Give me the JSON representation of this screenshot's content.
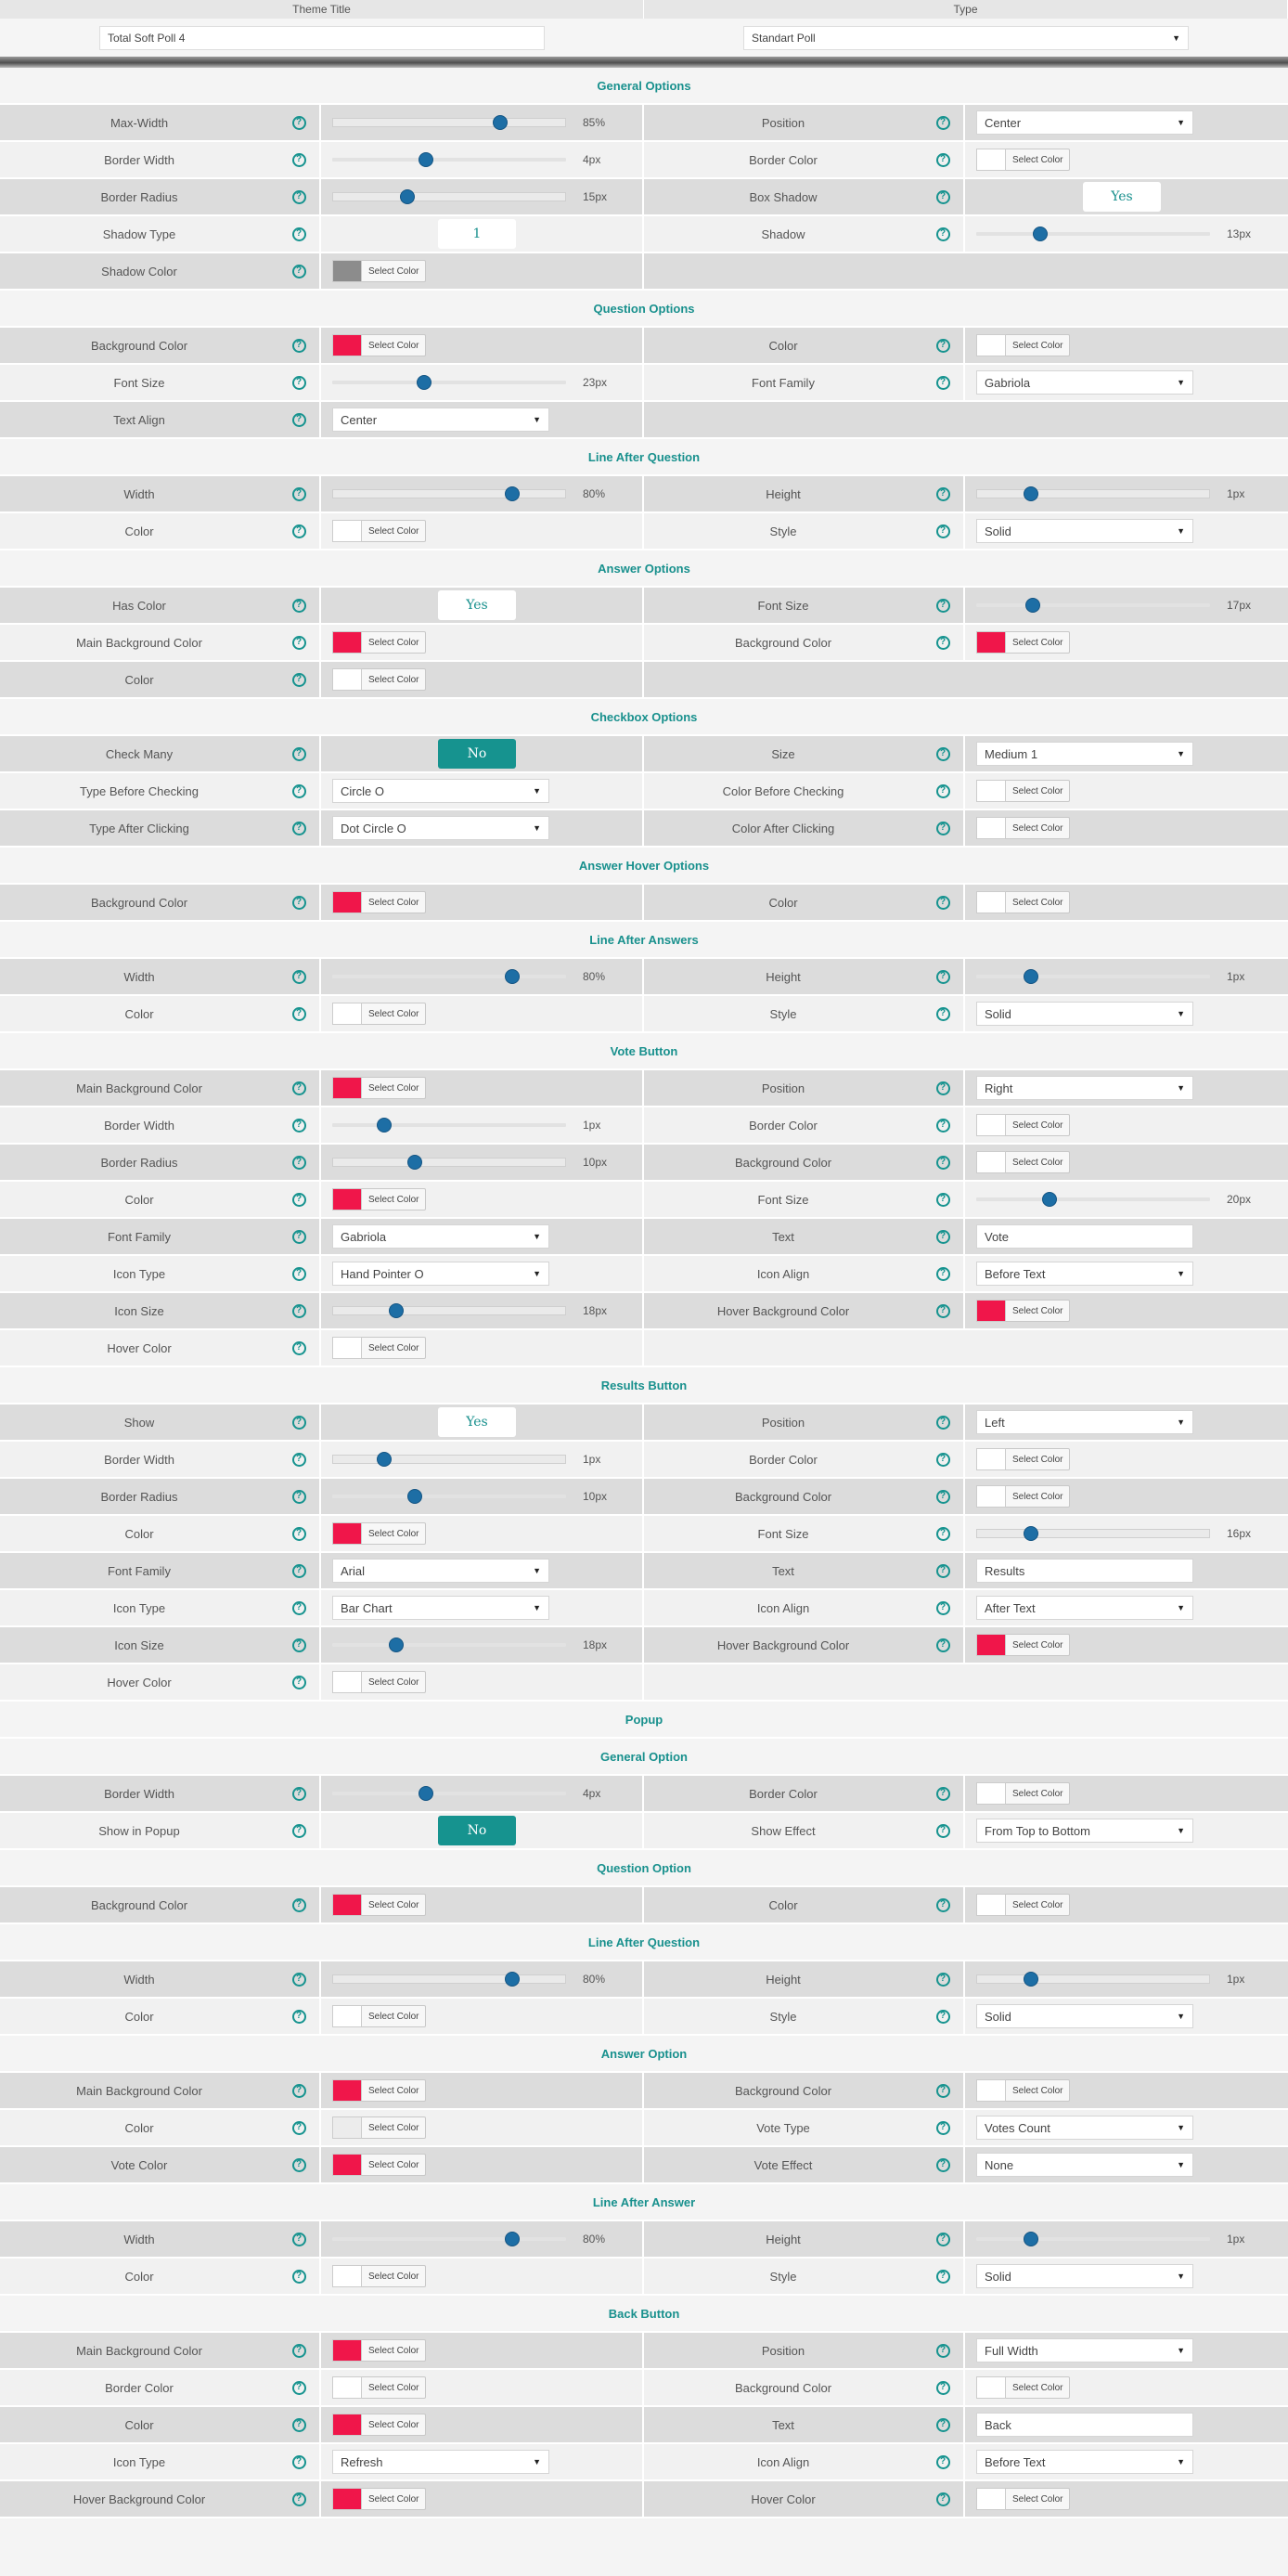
{
  "top": {
    "theme_title_label": "Theme Title",
    "type_label": "Type",
    "theme_title_value": "Total Soft Poll 4",
    "type_value": "Standart Poll"
  },
  "colors": {
    "accent": "#16938f",
    "red": "#f0164a",
    "gray": "#8c8c8c",
    "white": "#ffffff",
    "light": "#ececec"
  },
  "rows": [
    {
      "t": "sec",
      "text": "General Options"
    },
    {
      "t": "row",
      "l": {
        "label": "Max-Width",
        "ctl": {
          "k": "slider",
          "value": "85%",
          "pos": 72,
          "boxed": true
        }
      },
      "r": {
        "label": "Position",
        "ctl": {
          "k": "select",
          "value": "Center"
        }
      }
    },
    {
      "t": "row",
      "l": {
        "label": "Border Width",
        "ctl": {
          "k": "slider",
          "value": "4px",
          "pos": 40
        }
      },
      "r": {
        "label": "Border Color",
        "ctl": {
          "k": "color",
          "swatch": "white",
          "btn": "Select Color"
        }
      }
    },
    {
      "t": "row",
      "l": {
        "label": "Border Radius",
        "ctl": {
          "k": "slider",
          "value": "15px",
          "pos": 32,
          "boxed": true
        }
      },
      "r": {
        "label": "Box Shadow",
        "ctl": {
          "k": "toggle",
          "value": "Yes",
          "on": false
        }
      }
    },
    {
      "t": "row",
      "l": {
        "label": "Shadow Type",
        "ctl": {
          "k": "toggle",
          "value": "1",
          "on": false
        }
      },
      "r": {
        "label": "Shadow",
        "ctl": {
          "k": "slider",
          "value": "13px",
          "pos": 27
        }
      }
    },
    {
      "t": "row",
      "l": {
        "label": "Shadow Color",
        "ctl": {
          "k": "color",
          "swatch": "gray",
          "btn": "Select Color"
        }
      },
      "r": null
    },
    {
      "t": "sec",
      "text": "Question Options"
    },
    {
      "t": "row",
      "l": {
        "label": "Background Color",
        "ctl": {
          "k": "color",
          "swatch": "red",
          "btn": "Select Color"
        }
      },
      "r": {
        "label": "Color",
        "ctl": {
          "k": "color",
          "swatch": "white",
          "btn": "Select Color"
        }
      }
    },
    {
      "t": "row",
      "l": {
        "label": "Font Size",
        "ctl": {
          "k": "slider",
          "value": "23px",
          "pos": 39
        }
      },
      "r": {
        "label": "Font Family",
        "ctl": {
          "k": "select",
          "value": "Gabriola"
        }
      }
    },
    {
      "t": "row",
      "l": {
        "label": "Text Align",
        "ctl": {
          "k": "select",
          "value": "Center"
        }
      },
      "r": null
    },
    {
      "t": "sec",
      "text": "Line After Question"
    },
    {
      "t": "row",
      "l": {
        "label": "Width",
        "ctl": {
          "k": "slider",
          "value": "80%",
          "pos": 77,
          "boxed": true
        }
      },
      "r": {
        "label": "Height",
        "ctl": {
          "k": "slider",
          "value": "1px",
          "pos": 23,
          "boxed": true
        }
      }
    },
    {
      "t": "row",
      "l": {
        "label": "Color",
        "ctl": {
          "k": "color",
          "swatch": "white",
          "btn": "Select Color"
        }
      },
      "r": {
        "label": "Style",
        "ctl": {
          "k": "select",
          "value": "Solid"
        }
      }
    },
    {
      "t": "sec",
      "text": "Answer Options"
    },
    {
      "t": "row",
      "l": {
        "label": "Has Color",
        "ctl": {
          "k": "toggle",
          "value": "Yes",
          "on": false
        }
      },
      "r": {
        "label": "Font Size",
        "ctl": {
          "k": "slider",
          "value": "17px",
          "pos": 24
        }
      }
    },
    {
      "t": "row",
      "l": {
        "label": "Main Background Color",
        "ctl": {
          "k": "color",
          "swatch": "red",
          "btn": "Select Color"
        }
      },
      "r": {
        "label": "Background Color",
        "ctl": {
          "k": "color",
          "swatch": "red",
          "btn": "Select Color"
        }
      }
    },
    {
      "t": "row",
      "l": {
        "label": "Color",
        "ctl": {
          "k": "color",
          "swatch": "white",
          "btn": "Select Color"
        }
      },
      "r": null
    },
    {
      "t": "sec",
      "text": "Checkbox Options"
    },
    {
      "t": "row",
      "l": {
        "label": "Check Many",
        "ctl": {
          "k": "toggle",
          "value": "No",
          "on": true
        }
      },
      "r": {
        "label": "Size",
        "ctl": {
          "k": "select",
          "value": "Medium 1"
        }
      }
    },
    {
      "t": "row",
      "l": {
        "label": "Type Before Checking",
        "ctl": {
          "k": "select",
          "value": "Circle O"
        }
      },
      "r": {
        "label": "Color Before Checking",
        "ctl": {
          "k": "color",
          "swatch": "white",
          "btn": "Select Color"
        }
      }
    },
    {
      "t": "row",
      "l": {
        "label": "Type After Clicking",
        "ctl": {
          "k": "select",
          "value": "Dot Circle O"
        }
      },
      "r": {
        "label": "Color After Clicking",
        "ctl": {
          "k": "color",
          "swatch": "white",
          "btn": "Select Color"
        }
      }
    },
    {
      "t": "sec",
      "text": "Answer Hover Options"
    },
    {
      "t": "row",
      "l": {
        "label": "Background Color",
        "ctl": {
          "k": "color",
          "swatch": "red",
          "btn": "Select Color"
        }
      },
      "r": {
        "label": "Color",
        "ctl": {
          "k": "color",
          "swatch": "white",
          "btn": "Select Color"
        }
      }
    },
    {
      "t": "sec",
      "text": "Line After Answers"
    },
    {
      "t": "row",
      "l": {
        "label": "Width",
        "ctl": {
          "k": "slider",
          "value": "80%",
          "pos": 77
        }
      },
      "r": {
        "label": "Height",
        "ctl": {
          "k": "slider",
          "value": "1px",
          "pos": 23
        }
      }
    },
    {
      "t": "row",
      "l": {
        "label": "Color",
        "ctl": {
          "k": "color",
          "swatch": "white",
          "btn": "Select Color"
        }
      },
      "r": {
        "label": "Style",
        "ctl": {
          "k": "select",
          "value": "Solid"
        }
      }
    },
    {
      "t": "sec",
      "text": "Vote Button"
    },
    {
      "t": "row",
      "l": {
        "label": "Main Background Color",
        "ctl": {
          "k": "color",
          "swatch": "red",
          "btn": "Select Color"
        }
      },
      "r": {
        "label": "Position",
        "ctl": {
          "k": "select",
          "value": "Right"
        }
      }
    },
    {
      "t": "row",
      "l": {
        "label": "Border Width",
        "ctl": {
          "k": "slider",
          "value": "1px",
          "pos": 22
        }
      },
      "r": {
        "label": "Border Color",
        "ctl": {
          "k": "color",
          "swatch": "white",
          "btn": "Select Color"
        }
      }
    },
    {
      "t": "row",
      "l": {
        "label": "Border Radius",
        "ctl": {
          "k": "slider",
          "value": "10px",
          "pos": 35,
          "boxed": true
        }
      },
      "r": {
        "label": "Background Color",
        "ctl": {
          "k": "color",
          "swatch": "white",
          "btn": "Select Color"
        }
      }
    },
    {
      "t": "row",
      "l": {
        "label": "Color",
        "ctl": {
          "k": "color",
          "swatch": "red",
          "btn": "Select Color"
        }
      },
      "r": {
        "label": "Font Size",
        "ctl": {
          "k": "slider",
          "value": "20px",
          "pos": 31
        }
      }
    },
    {
      "t": "row",
      "l": {
        "label": "Font Family",
        "ctl": {
          "k": "select",
          "value": "Gabriola"
        }
      },
      "r": {
        "label": "Text",
        "ctl": {
          "k": "text",
          "value": "Vote"
        }
      }
    },
    {
      "t": "row",
      "l": {
        "label": "Icon Type",
        "ctl": {
          "k": "select",
          "value": "Hand Pointer O"
        }
      },
      "r": {
        "label": "Icon Align",
        "ctl": {
          "k": "select",
          "value": "Before Text"
        }
      }
    },
    {
      "t": "row",
      "l": {
        "label": "Icon Size",
        "ctl": {
          "k": "slider",
          "value": "18px",
          "pos": 27,
          "boxed": true
        }
      },
      "r": {
        "label": "Hover Background Color",
        "ctl": {
          "k": "color",
          "swatch": "red",
          "btn": "Select Color"
        }
      }
    },
    {
      "t": "row",
      "l": {
        "label": "Hover Color",
        "ctl": {
          "k": "color",
          "swatch": "white",
          "btn": "Select Color"
        }
      },
      "r": null
    },
    {
      "t": "sec",
      "text": "Results Button"
    },
    {
      "t": "row",
      "l": {
        "label": "Show",
        "ctl": {
          "k": "toggle",
          "value": "Yes",
          "on": false
        }
      },
      "r": {
        "label": "Position",
        "ctl": {
          "k": "select",
          "value": "Left"
        }
      }
    },
    {
      "t": "row",
      "l": {
        "label": "Border Width",
        "ctl": {
          "k": "slider",
          "value": "1px",
          "pos": 22,
          "boxed": true
        }
      },
      "r": {
        "label": "Border Color",
        "ctl": {
          "k": "color",
          "swatch": "white",
          "btn": "Select Color"
        }
      }
    },
    {
      "t": "row",
      "l": {
        "label": "Border Radius",
        "ctl": {
          "k": "slider",
          "value": "10px",
          "pos": 35
        }
      },
      "r": {
        "label": "Background Color",
        "ctl": {
          "k": "color",
          "swatch": "white",
          "btn": "Select Color"
        }
      }
    },
    {
      "t": "row",
      "l": {
        "label": "Color",
        "ctl": {
          "k": "color",
          "swatch": "red",
          "btn": "Select Color"
        }
      },
      "r": {
        "label": "Font Size",
        "ctl": {
          "k": "slider",
          "value": "16px",
          "pos": 23,
          "boxed": true
        }
      }
    },
    {
      "t": "row",
      "l": {
        "label": "Font Family",
        "ctl": {
          "k": "select",
          "value": "Arial"
        }
      },
      "r": {
        "label": "Text",
        "ctl": {
          "k": "text",
          "value": "Results"
        }
      }
    },
    {
      "t": "row",
      "l": {
        "label": "Icon Type",
        "ctl": {
          "k": "select",
          "value": "Bar Chart"
        }
      },
      "r": {
        "label": "Icon Align",
        "ctl": {
          "k": "select",
          "value": "After Text"
        }
      }
    },
    {
      "t": "row",
      "l": {
        "label": "Icon Size",
        "ctl": {
          "k": "slider",
          "value": "18px",
          "pos": 27
        }
      },
      "r": {
        "label": "Hover Background Color",
        "ctl": {
          "k": "color",
          "swatch": "red",
          "btn": "Select Color"
        }
      }
    },
    {
      "t": "row",
      "l": {
        "label": "Hover Color",
        "ctl": {
          "k": "color",
          "swatch": "white",
          "btn": "Select Color"
        }
      },
      "r": null
    },
    {
      "t": "sec",
      "text": "Popup"
    },
    {
      "t": "sec",
      "text": "General Option"
    },
    {
      "t": "row",
      "l": {
        "label": "Border Width",
        "ctl": {
          "k": "slider",
          "value": "4px",
          "pos": 40
        }
      },
      "r": {
        "label": "Border Color",
        "ctl": {
          "k": "color",
          "swatch": "white",
          "btn": "Select Color"
        }
      }
    },
    {
      "t": "row",
      "l": {
        "label": "Show in Popup",
        "ctl": {
          "k": "toggle",
          "value": "No",
          "on": true
        }
      },
      "r": {
        "label": "Show Effect",
        "ctl": {
          "k": "select",
          "value": "From Top to Bottom"
        }
      }
    },
    {
      "t": "sec",
      "text": "Question Option"
    },
    {
      "t": "row",
      "l": {
        "label": "Background Color",
        "ctl": {
          "k": "color",
          "swatch": "red",
          "btn": "Select Color"
        }
      },
      "r": {
        "label": "Color",
        "ctl": {
          "k": "color",
          "swatch": "white",
          "btn": "Select Color"
        }
      }
    },
    {
      "t": "sec",
      "text": "Line After Question"
    },
    {
      "t": "row",
      "l": {
        "label": "Width",
        "ctl": {
          "k": "slider",
          "value": "80%",
          "pos": 77,
          "boxed": true
        }
      },
      "r": {
        "label": "Height",
        "ctl": {
          "k": "slider",
          "value": "1px",
          "pos": 23,
          "boxed": true
        }
      }
    },
    {
      "t": "row",
      "l": {
        "label": "Color",
        "ctl": {
          "k": "color",
          "swatch": "white",
          "btn": "Select Color"
        }
      },
      "r": {
        "label": "Style",
        "ctl": {
          "k": "select",
          "value": "Solid"
        }
      }
    },
    {
      "t": "sec",
      "text": "Answer Option"
    },
    {
      "t": "row",
      "l": {
        "label": "Main Background Color",
        "ctl": {
          "k": "color",
          "swatch": "red",
          "btn": "Select Color"
        }
      },
      "r": {
        "label": "Background Color",
        "ctl": {
          "k": "color",
          "swatch": "white",
          "btn": "Select Color"
        }
      }
    },
    {
      "t": "row",
      "l": {
        "label": "Color",
        "ctl": {
          "k": "color",
          "swatch": "light",
          "btn": "Select Color"
        }
      },
      "r": {
        "label": "Vote Type",
        "ctl": {
          "k": "select",
          "value": "Votes Count"
        }
      }
    },
    {
      "t": "row",
      "l": {
        "label": "Vote Color",
        "ctl": {
          "k": "color",
          "swatch": "red",
          "btn": "Select Color"
        }
      },
      "r": {
        "label": "Vote Effect",
        "ctl": {
          "k": "select",
          "value": "None"
        }
      }
    },
    {
      "t": "sec",
      "text": "Line After Answer"
    },
    {
      "t": "row",
      "l": {
        "label": "Width",
        "ctl": {
          "k": "slider",
          "value": "80%",
          "pos": 77
        }
      },
      "r": {
        "label": "Height",
        "ctl": {
          "k": "slider",
          "value": "1px",
          "pos": 23
        }
      }
    },
    {
      "t": "row",
      "l": {
        "label": "Color",
        "ctl": {
          "k": "color",
          "swatch": "white",
          "btn": "Select Color"
        }
      },
      "r": {
        "label": "Style",
        "ctl": {
          "k": "select",
          "value": "Solid"
        }
      }
    },
    {
      "t": "sec",
      "text": "Back Button"
    },
    {
      "t": "row",
      "l": {
        "label": "Main Background Color",
        "ctl": {
          "k": "color",
          "swatch": "red",
          "btn": "Select Color"
        }
      },
      "r": {
        "label": "Position",
        "ctl": {
          "k": "select",
          "value": "Full Width"
        }
      }
    },
    {
      "t": "row",
      "l": {
        "label": "Border Color",
        "ctl": {
          "k": "color",
          "swatch": "white",
          "btn": "Select Color"
        }
      },
      "r": {
        "label": "Background Color",
        "ctl": {
          "k": "color",
          "swatch": "white",
          "btn": "Select Color"
        }
      }
    },
    {
      "t": "row",
      "l": {
        "label": "Color",
        "ctl": {
          "k": "color",
          "swatch": "red",
          "btn": "Select Color"
        }
      },
      "r": {
        "label": "Text",
        "ctl": {
          "k": "text",
          "value": "Back"
        }
      }
    },
    {
      "t": "row",
      "l": {
        "label": "Icon Type",
        "ctl": {
          "k": "select",
          "value": "Refresh"
        }
      },
      "r": {
        "label": "Icon Align",
        "ctl": {
          "k": "select",
          "value": "Before Text"
        }
      }
    },
    {
      "t": "row",
      "l": {
        "label": "Hover Background Color",
        "ctl": {
          "k": "color",
          "swatch": "red",
          "btn": "Select Color"
        }
      },
      "r": {
        "label": "Hover Color",
        "ctl": {
          "k": "color",
          "swatch": "white",
          "btn": "Select Color"
        }
      }
    }
  ]
}
